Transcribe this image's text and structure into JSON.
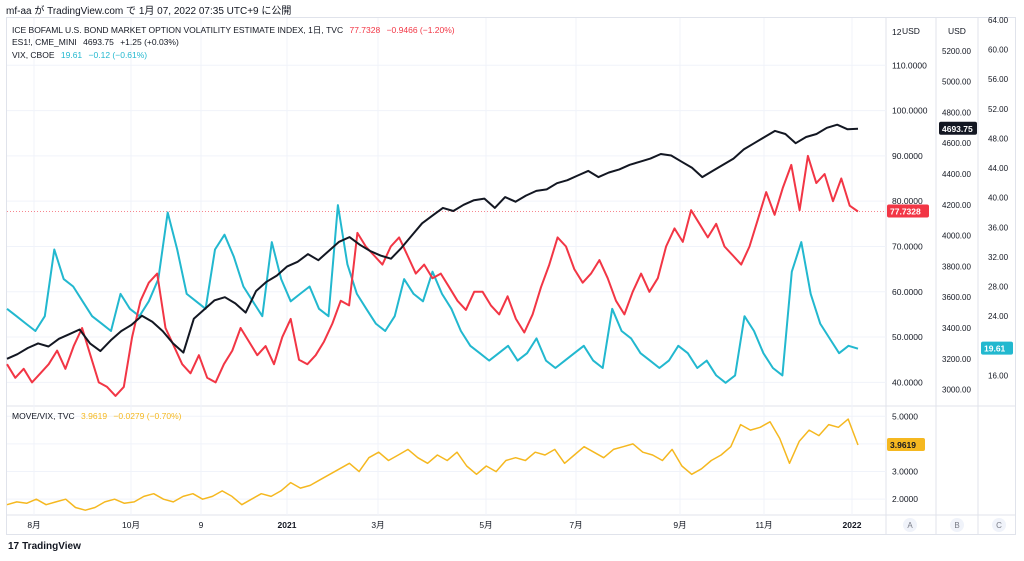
{
  "header": {
    "text": "mf-aa が TradingView.com で 1月 07, 2022 07:35 UTC+9 に公開"
  },
  "legend_top": [
    {
      "label": "ICE BOFAML U.S. BOND MARKET OPTION VOLATILITY ESTIMATE INDEX, 1日, TVC",
      "value": "77.7328",
      "change": "−0.9466 (−1.20%)",
      "color": "#f23645"
    },
    {
      "label": "ES1!, CME_MINI",
      "value": "4693.75",
      "change": "+1.25 (+0.03%)",
      "color": "#131722"
    },
    {
      "label": "VIX, CBOE",
      "value": "19.61",
      "change": "−0.12 (−0.61%)",
      "color": "#22b8cf"
    }
  ],
  "legend_bottom": {
    "label": "MOVE/VIX, TVC",
    "value": "3.9619",
    "change": "−0.0279 (−0.70%)",
    "color": "#f5b820"
  },
  "axis_units": {
    "a": "USD",
    "b": "USD"
  },
  "axis_a_ticks": [
    "110.0000",
    "100.0000",
    "90.0000",
    "80.0000",
    "70.0000",
    "60.0000",
    "50.0000",
    "40.0000"
  ],
  "axis_a_top_partial": "12",
  "axis_b_ticks": [
    "5200.00",
    "5000.00",
    "4800.00",
    "4600.00",
    "4400.00",
    "4200.00",
    "4000.00",
    "3800.00",
    "3600.00",
    "3400.00",
    "3200.00",
    "3000.00"
  ],
  "axis_c_ticks": [
    "64.00",
    "60.00",
    "56.00",
    "52.00",
    "48.00",
    "44.00",
    "40.00",
    "36.00",
    "32.00",
    "28.00",
    "24.00",
    "20.00",
    "16.00"
  ],
  "axis_lower_ticks": [
    "5.0000",
    "4.0000",
    "3.0000",
    "2.0000"
  ],
  "x_ticks": [
    "8月",
    "10月",
    "9",
    "2021",
    "3月",
    "5月",
    "7月",
    "9月",
    "11月",
    "2022"
  ],
  "scale_buttons": [
    "A",
    "B",
    "C"
  ],
  "last_value_badges": {
    "es": "4693.75",
    "move": "77.7328",
    "vix": "19.61",
    "ratio": "3.9619"
  },
  "brand": "TradingView",
  "colors": {
    "move": "#f23645",
    "es": "#131722",
    "vix": "#22b8cf",
    "ratio": "#f5b820",
    "grid": "#f0f3fa",
    "border": "#e0e3eb"
  },
  "chart_data": [
    {
      "type": "line",
      "series": [
        {
          "name": "ICE BOFAML U.S. BOND MARKET OPTION VOLATILITY ESTIMATE INDEX, 1日, TVC",
          "axis": "A",
          "values": [
            44,
            41,
            43,
            40,
            42,
            44,
            47,
            43,
            48,
            52,
            46,
            40,
            39,
            37,
            39,
            50,
            58,
            62,
            64,
            52,
            48,
            44,
            42,
            46,
            41,
            40,
            44,
            47,
            52,
            49,
            46,
            48,
            44,
            50,
            54,
            45,
            44,
            46,
            49,
            53,
            58,
            57,
            73,
            70,
            68,
            66,
            70,
            72,
            68,
            64,
            66,
            63,
            64,
            61,
            58,
            56,
            60,
            60,
            57,
            55,
            59,
            54,
            51,
            55,
            61,
            66,
            72,
            70,
            65,
            62,
            64,
            67,
            63,
            58,
            55,
            60,
            64,
            60,
            63,
            70,
            74,
            71,
            78,
            75,
            72,
            75,
            70,
            68,
            66,
            70,
            76,
            82,
            77,
            83,
            88,
            78,
            90,
            84,
            86,
            80,
            85,
            79,
            77.73
          ]
        },
        {
          "name": "ES1!, CME_MINI",
          "axis": "B",
          "values": [
            3200,
            3230,
            3270,
            3300,
            3280,
            3330,
            3360,
            3390,
            3300,
            3250,
            3320,
            3380,
            3420,
            3480,
            3440,
            3380,
            3300,
            3240,
            3460,
            3520,
            3580,
            3600,
            3560,
            3500,
            3640,
            3700,
            3740,
            3800,
            3830,
            3880,
            3840,
            3900,
            3960,
            3990,
            3940,
            3900,
            3870,
            3850,
            3920,
            4000,
            4080,
            4130,
            4180,
            4160,
            4200,
            4230,
            4240,
            4180,
            4250,
            4220,
            4260,
            4290,
            4300,
            4340,
            4360,
            4390,
            4420,
            4380,
            4410,
            4430,
            4460,
            4480,
            4500,
            4530,
            4520,
            4480,
            4440,
            4380,
            4420,
            4460,
            4500,
            4560,
            4600,
            4640,
            4680,
            4660,
            4600,
            4640,
            4660,
            4700,
            4720,
            4690,
            4693.75
          ]
        },
        {
          "name": "VIX, CBOE",
          "axis": "C",
          "values": [
            25,
            24,
            23,
            22,
            24,
            33,
            29,
            28,
            26,
            24,
            23,
            22,
            27,
            25,
            24,
            26,
            29,
            38,
            33,
            27,
            26,
            25,
            33,
            35,
            32,
            28,
            26,
            24,
            34,
            29,
            26,
            27,
            28,
            25,
            24,
            39,
            31,
            27,
            25,
            23,
            22,
            24,
            29,
            27,
            26,
            30,
            27,
            25,
            22,
            20,
            19,
            18,
            19,
            20,
            18,
            19,
            21,
            18,
            17,
            18,
            19,
            20,
            18,
            17,
            25,
            22,
            21,
            19,
            18,
            17,
            18,
            20,
            19,
            17,
            18,
            16,
            15,
            16,
            24,
            22,
            19,
            17,
            16,
            30,
            34,
            27,
            23,
            21,
            19,
            20,
            19.61
          ]
        }
      ],
      "y_axes": {
        "A": {
          "ylim": [
            35,
            120
          ],
          "unit": "USD"
        },
        "B": {
          "ylim": [
            2900,
            5400
          ],
          "unit": "USD"
        },
        "C": {
          "ylim": [
            12,
            64
          ]
        }
      },
      "x_ticks": [
        "8月",
        "10月",
        "9",
        "2021",
        "3月",
        "5月",
        "7月",
        "9月",
        "11月",
        "2022"
      ]
    },
    {
      "type": "line",
      "series": [
        {
          "name": "MOVE/VIX, TVC",
          "values": [
            1.8,
            1.9,
            1.85,
            2.0,
            1.8,
            1.9,
            2.0,
            1.7,
            1.6,
            1.7,
            1.9,
            2.0,
            1.85,
            1.9,
            2.1,
            2.2,
            2.0,
            1.9,
            2.1,
            2.2,
            2.0,
            2.1,
            2.3,
            2.1,
            1.8,
            2.0,
            2.2,
            2.1,
            2.3,
            2.6,
            2.4,
            2.5,
            2.7,
            2.9,
            3.1,
            3.3,
            3.0,
            3.5,
            3.7,
            3.4,
            3.6,
            3.8,
            3.5,
            3.3,
            3.6,
            3.4,
            3.7,
            3.2,
            2.9,
            3.2,
            3.0,
            3.4,
            3.5,
            3.4,
            3.7,
            3.6,
            3.8,
            3.3,
            3.6,
            3.9,
            3.7,
            3.5,
            3.8,
            3.9,
            4.0,
            3.7,
            3.6,
            3.4,
            3.8,
            3.2,
            2.9,
            3.1,
            3.4,
            3.6,
            3.9,
            4.7,
            4.5,
            4.6,
            4.8,
            4.2,
            3.3,
            4.1,
            4.5,
            4.3,
            4.7,
            4.6,
            4.9,
            3.9619
          ]
        }
      ],
      "ylim": [
        1.5,
        5.3
      ],
      "y_ticks": [
        "5.0000",
        "4.0000",
        "3.0000",
        "2.0000"
      ]
    }
  ]
}
